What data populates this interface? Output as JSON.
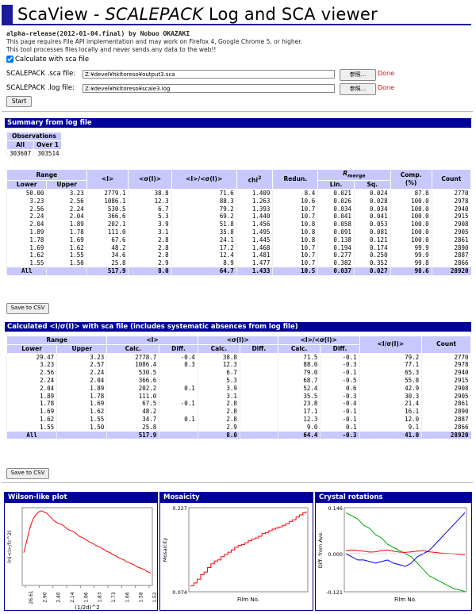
{
  "header": {
    "title_a": "ScaView - ",
    "title_b": "SCALEPACK",
    "title_c": " Log and SCA viewer",
    "release": "alpha-release(2012-01-04.final) by Nobuo OKAZAKI",
    "note1": "This page requires File API implementation and may work on Firefox 4, Google Chrome 5, or higher.",
    "note2": "This tool processes files locally and never sends any data to the web!!"
  },
  "form": {
    "calc_label": "Calculate with sca file",
    "calc_checked": true,
    "sca_label": "SCALEPACK .sca file:",
    "sca_value": "Z:¥devel¥hkltoreso¥output3.sca",
    "log_label": "SCALEPACK .log file:",
    "log_value": "Z:¥devel¥hkltoreso¥scale3.log",
    "browse": "参照...",
    "done": "Done",
    "start": "Start"
  },
  "summary": {
    "heading": "Summary from log file",
    "obs_header": "Observations",
    "all_h": "All",
    "over_h": "Over 1",
    "all": "303607",
    "over": "303514"
  },
  "logtable": {
    "h": {
      "range": "Range",
      "lower": "Lower",
      "upper": "Upper",
      "i": "<I>",
      "sig": "<σ(I)>",
      "isig": "<I>/<σ(I)>",
      "chi": "chi",
      "chi_sup": "2",
      "redun": "Redun.",
      "rmerge": "R",
      "rmerge_sub": "merge",
      "lin": "Lin.",
      "sq": "Sq.",
      "comp": "Comp.",
      "comp2": "(%)",
      "count": "Count"
    },
    "rows": [
      [
        "50.00",
        "3.23",
        "2779.1",
        "38.8",
        "71.6",
        "1.409",
        "8.4",
        "0.021",
        "0.024",
        "87.8",
        "2770"
      ],
      [
        "3.23",
        "2.56",
        "1086.1",
        "12.3",
        "88.3",
        "1.263",
        "10.6",
        "0.026",
        "0.028",
        "100.0",
        "2978"
      ],
      [
        "2.56",
        "2.24",
        "530.5",
        "6.7",
        "79.2",
        "1.393",
        "10.7",
        "0.034",
        "0.034",
        "100.0",
        "2940"
      ],
      [
        "2.24",
        "2.04",
        "366.6",
        "5.3",
        "69.2",
        "1.440",
        "10.7",
        "0.041",
        "0.041",
        "100.0",
        "2915"
      ],
      [
        "2.04",
        "1.89",
        "202.1",
        "3.9",
        "51.8",
        "1.456",
        "10.8",
        "0.058",
        "0.053",
        "100.0",
        "2908"
      ],
      [
        "1.89",
        "1.78",
        "111.0",
        "3.1",
        "35.8",
        "1.495",
        "10.8",
        "0.091",
        "0.081",
        "100.0",
        "2905"
      ],
      [
        "1.78",
        "1.69",
        "67.6",
        "2.8",
        "24.1",
        "1.445",
        "10.8",
        "0.138",
        "0.121",
        "100.0",
        "2861"
      ],
      [
        "1.69",
        "1.62",
        "48.2",
        "2.8",
        "17.2",
        "1.468",
        "10.7",
        "0.194",
        "0.174",
        "99.9",
        "2890"
      ],
      [
        "1.62",
        "1.55",
        "34.6",
        "2.8",
        "12.4",
        "1.481",
        "10.7",
        "0.277",
        "0.250",
        "99.9",
        "2887"
      ],
      [
        "1.55",
        "1.50",
        "25.8",
        "2.9",
        "8.9",
        "1.477",
        "10.7",
        "0.382",
        "0.352",
        "99.8",
        "2866"
      ]
    ],
    "all": [
      "All",
      "",
      "517.9",
      "8.0",
      "64.7",
      "1.433",
      "10.5",
      "0.037",
      "0.027",
      "98.6",
      "28920"
    ],
    "csv": "Save to CSV"
  },
  "scatable": {
    "heading": "Calculated <I/σ(I)> with sca file (includes systematic absences from log file)",
    "h": {
      "range": "Range",
      "lower": "Lower",
      "upper": "Upper",
      "i": "<I>",
      "sig": "<σ(I)>",
      "isig": "<I>/<σ(I)>",
      "calc": "Calc.",
      "diff": "Diff.",
      "iosig": "<I/σ(I)>",
      "count": "Count"
    },
    "rows": [
      [
        "29.47",
        "3.23",
        "2778.7",
        "-0.4",
        "38.8",
        "",
        "71.5",
        "-0.1",
        "79.2",
        "2770"
      ],
      [
        "3.23",
        "2.57",
        "1086.4",
        "0.3",
        "12.3",
        "",
        "88.0",
        "-0.3",
        "77.1",
        "2978"
      ],
      [
        "2.56",
        "2.24",
        "530.5",
        "",
        "6.7",
        "",
        "79.0",
        "-0.1",
        "65.3",
        "2940"
      ],
      [
        "2.24",
        "2.04",
        "366.6",
        "",
        "5.3",
        "",
        "68.7",
        "-0.5",
        "55.8",
        "2915"
      ],
      [
        "2.04",
        "1.89",
        "202.2",
        "0.1",
        "3.9",
        "",
        "52.4",
        "0.6",
        "42.9",
        "2908"
      ],
      [
        "1.89",
        "1.78",
        "111.0",
        "",
        "3.1",
        "",
        "35.5",
        "-0.3",
        "30.3",
        "2905"
      ],
      [
        "1.78",
        "1.69",
        "67.5",
        "-0.1",
        "2.8",
        "",
        "23.8",
        "-0.4",
        "21.4",
        "2861"
      ],
      [
        "1.69",
        "1.62",
        "48.2",
        "",
        "2.8",
        "",
        "17.1",
        "-0.1",
        "16.1",
        "2890"
      ],
      [
        "1.62",
        "1.55",
        "34.7",
        "0.1",
        "2.8",
        "",
        "12.3",
        "-0.1",
        "12.0",
        "2887"
      ],
      [
        "1.55",
        "1.50",
        "25.8",
        "",
        "2.9",
        "",
        "9.0",
        "0.1",
        "9.1",
        "2866"
      ]
    ],
    "all": [
      "All",
      "",
      "517.9",
      "",
      "8.0",
      "",
      "64.4",
      "-0.3",
      "41.0",
      "28920"
    ],
    "csv": "Save to CSV"
  },
  "chart_data": [
    {
      "type": "line",
      "title": "Wilson-like plot",
      "xlabel": "(1/2d)^2",
      "ylabel": "ln(<I>/fc^2)",
      "x_tick_labels": [
        "26.61",
        "2.90",
        "2.40",
        "2.14",
        "1.96",
        "1.83",
        "1.73",
        "1.66",
        "1.58",
        "1.52"
      ],
      "series": [
        {
          "color": "#ff0000",
          "values": [
            0.42,
            0.52,
            0.62,
            0.72,
            0.8,
            0.86,
            0.9,
            0.93,
            0.95,
            0.96,
            0.95,
            0.94,
            0.93,
            0.9,
            0.88,
            0.85,
            0.83,
            0.81,
            0.8,
            0.79,
            0.78,
            0.76,
            0.74,
            0.72,
            0.71,
            0.7,
            0.69,
            0.67,
            0.65,
            0.63,
            0.62,
            0.61,
            0.59,
            0.58,
            0.56,
            0.55,
            0.54,
            0.52,
            0.51,
            0.5,
            0.49,
            0.47,
            0.46,
            0.44,
            0.43,
            0.42,
            0.4,
            0.39,
            0.38,
            0.36,
            0.35,
            0.34,
            0.33,
            0.31,
            0.3,
            0.29,
            0.28,
            0.27,
            0.25,
            0.24,
            0.23,
            0.22,
            0.21,
            0.2,
            0.18,
            0.17,
            0.16
          ]
        }
      ]
    },
    {
      "type": "line",
      "title": "Mosaicity",
      "xlabel": "Film No.",
      "ylabel": "Mosaicity",
      "ylim": [
        0.074,
        0.227
      ],
      "y_tick_labels": [
        "0.227",
        "0.074"
      ],
      "series": [
        {
          "color": "#ff0000",
          "values": [
            0.085,
            0.09,
            0.097,
            0.105,
            0.11,
            0.118,
            0.125,
            0.13,
            0.132,
            0.138,
            0.142,
            0.146,
            0.15,
            0.155,
            0.158,
            0.16,
            0.163,
            0.167,
            0.17,
            0.172,
            0.175,
            0.18,
            0.182,
            0.185,
            0.188,
            0.19,
            0.192,
            0.195,
            0.198,
            0.202,
            0.205,
            0.21,
            0.214,
            0.218,
            0.22
          ]
        }
      ]
    },
    {
      "type": "line",
      "title": "Crystal rotations",
      "xlabel": "Film No.",
      "ylabel": "Diff. from Ave.",
      "ylim": [
        -0.121,
        0.146
      ],
      "y_tick_labels": [
        "0.146",
        "0.000",
        "-0.121"
      ],
      "series": [
        {
          "color": "#00aa00",
          "values": [
            0.13,
            0.12,
            0.11,
            0.09,
            0.08,
            0.06,
            0.05,
            0.03,
            0.02,
            0.01,
            0.0,
            -0.01,
            -0.03,
            -0.05,
            -0.07,
            -0.08,
            -0.09,
            -0.1,
            -0.11,
            -0.115,
            -0.12
          ]
        },
        {
          "color": "#ff0000",
          "values": [
            0.01,
            0.012,
            0.01,
            0.008,
            0.005,
            0.006,
            0.01,
            0.012,
            0.008,
            0.005,
            0.004,
            0.006,
            0.008,
            0.01,
            0.006,
            0.004,
            0.002,
            0.001,
            0.0,
            -0.002,
            -0.004
          ]
        },
        {
          "color": "#0000ff",
          "values": [
            0.0,
            -0.01,
            -0.02,
            -0.02,
            -0.025,
            -0.03,
            -0.025,
            -0.02,
            -0.03,
            -0.035,
            -0.04,
            -0.03,
            -0.01,
            0.0,
            0.01,
            0.03,
            0.05,
            0.07,
            0.09,
            0.11,
            0.13
          ]
        }
      ]
    }
  ]
}
